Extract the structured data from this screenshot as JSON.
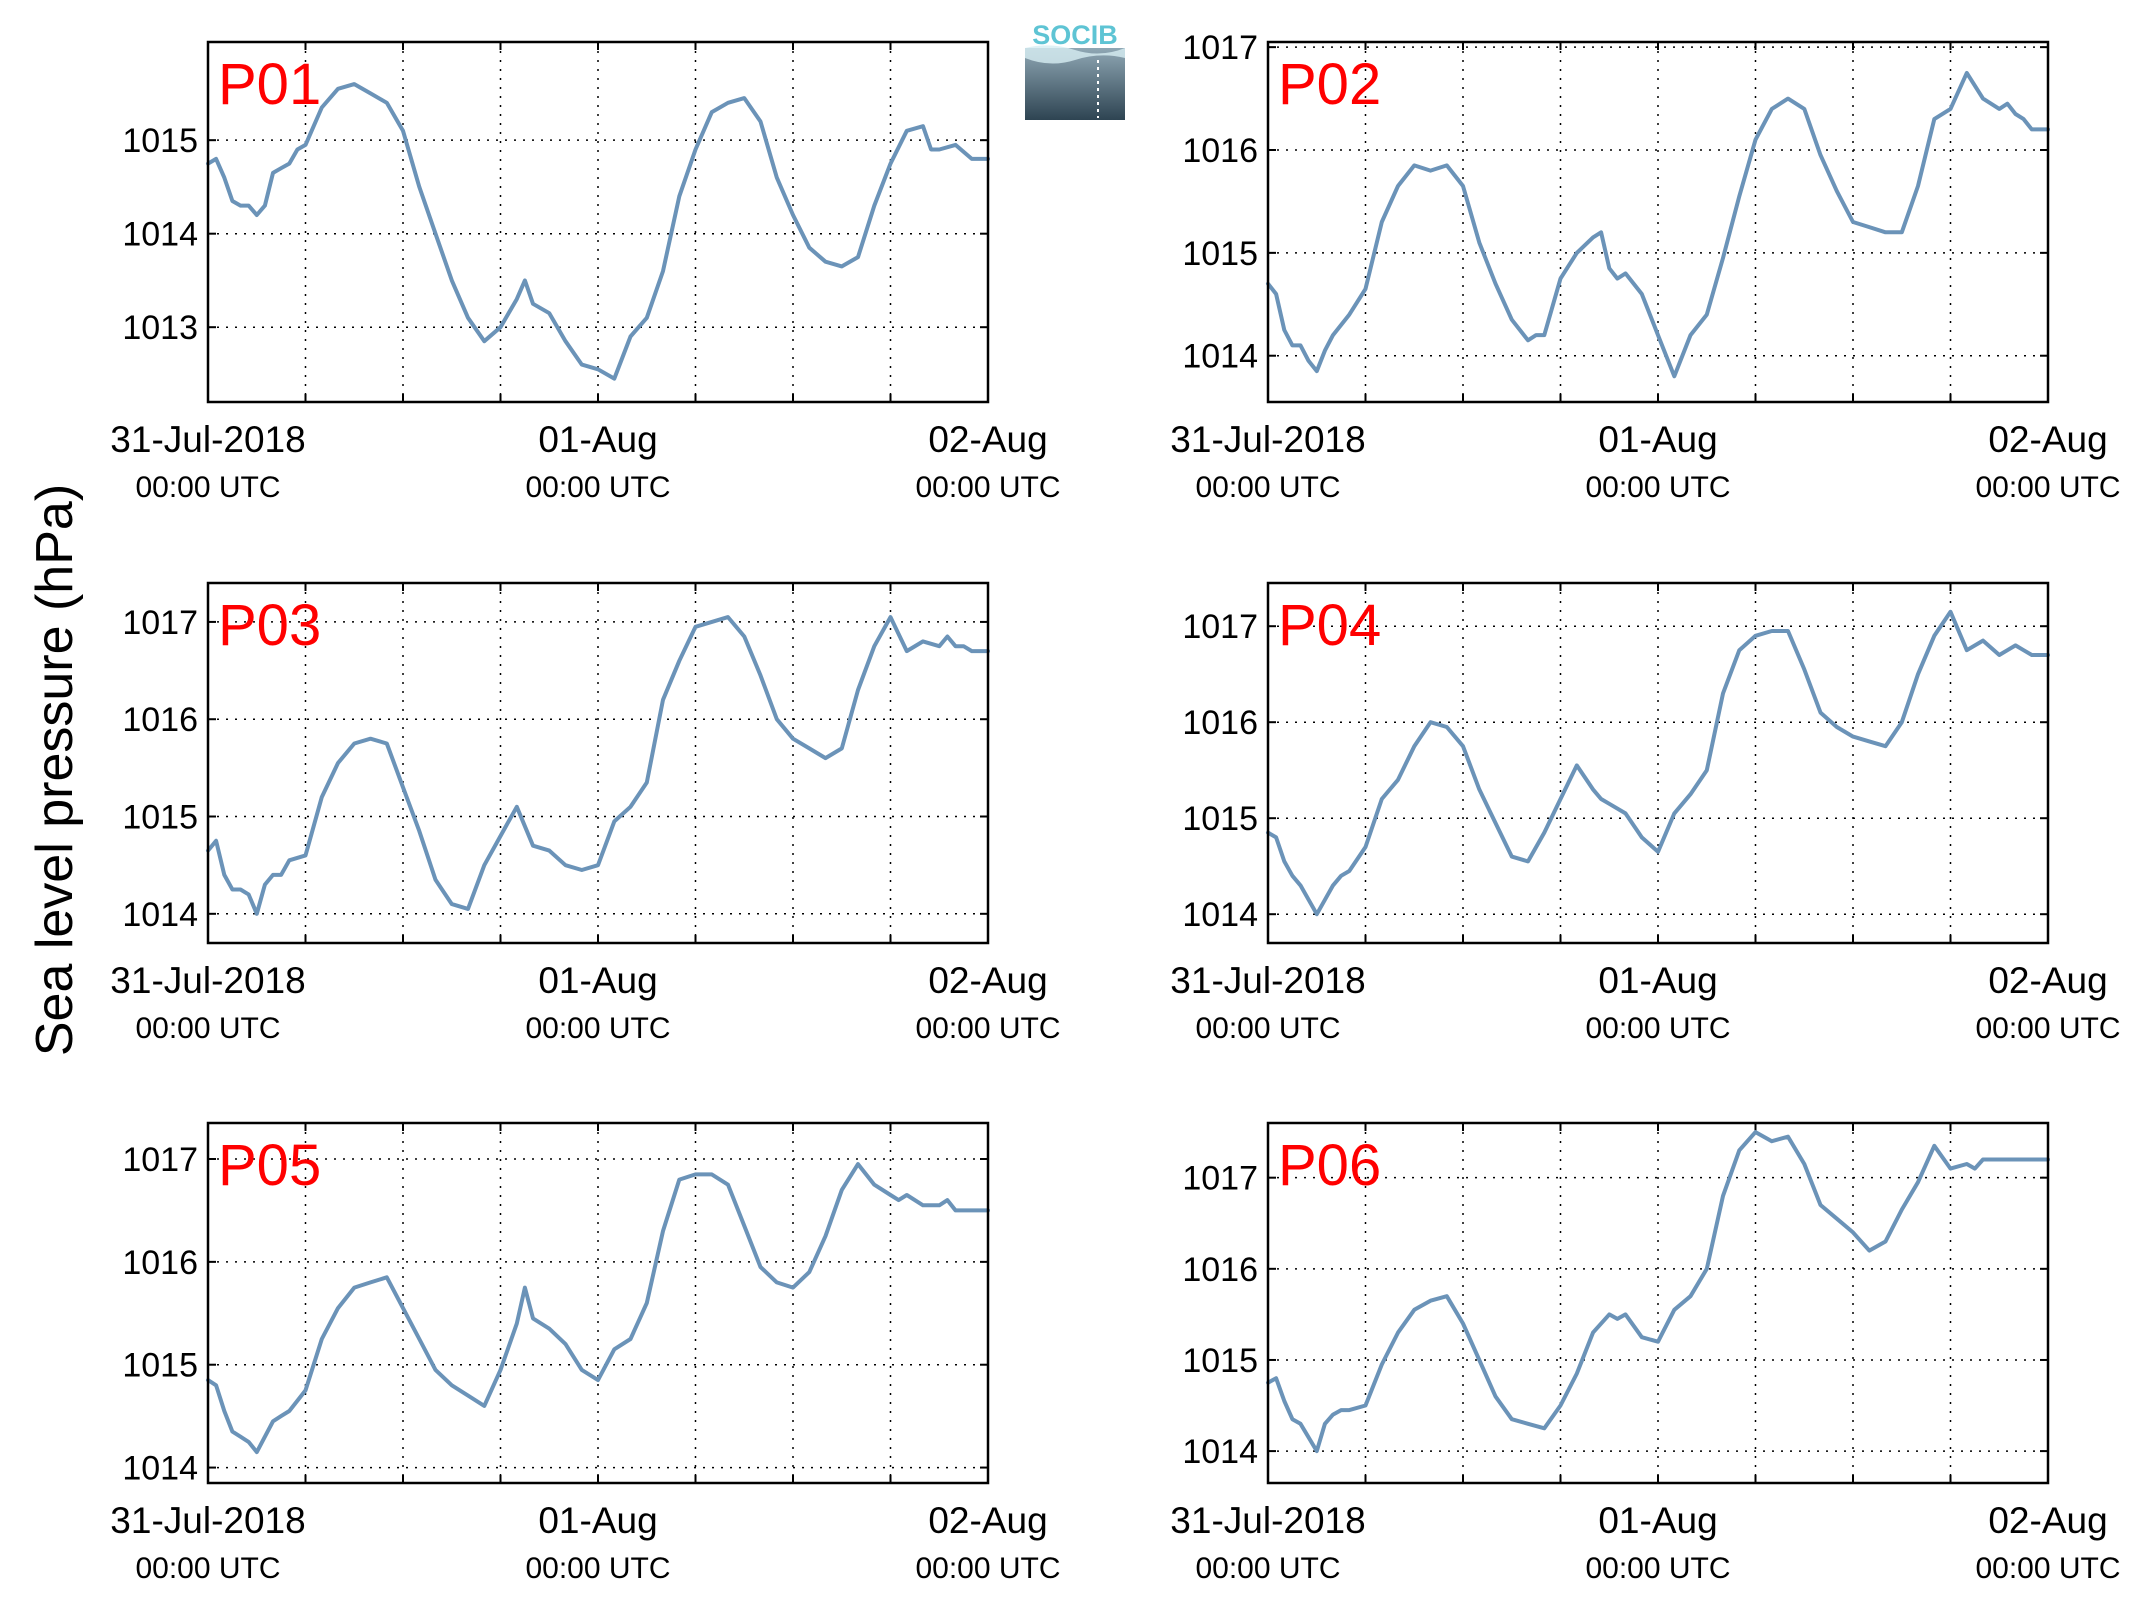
{
  "ylabel": "Sea level pressure (hPa)",
  "logo": {
    "text": "SOCIB",
    "text_color": "#5ec4d4"
  },
  "colors": {
    "line": "#6b93b8",
    "panel_label": "#ff0000"
  },
  "chart_data": [
    {
      "type": "line",
      "name": "P01",
      "ylim": [
        1012.2,
        1016.05
      ],
      "yticks": [
        1013,
        1014,
        1015
      ],
      "xlim": [
        0,
        48
      ],
      "grid": true,
      "series": [
        {
          "color": "#6b93b8",
          "x": [
            0,
            0.5,
            1,
            1.5,
            2,
            2.5,
            3,
            3.5,
            4,
            4.5,
            5,
            5.5,
            6,
            7,
            8,
            9,
            10,
            11,
            12,
            13,
            14,
            15,
            16,
            17,
            18,
            19,
            19.5,
            20,
            21,
            22,
            23,
            24,
            25,
            26,
            27,
            28,
            29,
            30,
            31,
            32,
            33,
            34,
            35,
            36,
            37,
            38,
            39,
            40,
            41,
            42,
            43,
            44,
            44.5,
            45,
            46,
            47,
            48
          ],
          "y": [
            1014.75,
            1014.8,
            1014.6,
            1014.35,
            1014.3,
            1014.3,
            1014.2,
            1014.3,
            1014.65,
            1014.7,
            1014.75,
            1014.9,
            1014.95,
            1015.35,
            1015.55,
            1015.6,
            1015.5,
            1015.4,
            1015.1,
            1014.5,
            1014.0,
            1013.5,
            1013.1,
            1012.85,
            1013.0,
            1013.3,
            1013.5,
            1013.25,
            1013.15,
            1012.85,
            1012.6,
            1012.55,
            1012.45,
            1012.9,
            1013.1,
            1013.6,
            1014.4,
            1014.9,
            1015.3,
            1015.4,
            1015.45,
            1015.2,
            1014.6,
            1014.2,
            1013.85,
            1013.7,
            1013.65,
            1013.75,
            1014.3,
            1014.75,
            1015.1,
            1015.15,
            1014.9,
            1014.9,
            1014.95,
            1014.8,
            1014.8
          ]
        }
      ],
      "x_ticks": [
        {
          "date": "31-Jul-2018",
          "time": "00:00 UTC"
        },
        {
          "date": "01-Aug",
          "time": "00:00 UTC"
        },
        {
          "date": "02-Aug",
          "time": "00:00 UTC"
        }
      ]
    },
    {
      "type": "line",
      "name": "P02",
      "ylim": [
        1013.55,
        1017.05
      ],
      "yticks": [
        1014,
        1015,
        1016,
        1017
      ],
      "xlim": [
        0,
        48
      ],
      "grid": true,
      "series": [
        {
          "color": "#6b93b8",
          "x": [
            0,
            0.5,
            1,
            1.5,
            2,
            2.5,
            3,
            3.5,
            4,
            5,
            6,
            7,
            8,
            9,
            10,
            11,
            12,
            13,
            14,
            15,
            16,
            16.5,
            17,
            18,
            19,
            20,
            20.5,
            21,
            21.5,
            22,
            23,
            24,
            25,
            26,
            27,
            28,
            29,
            30,
            31,
            32,
            33,
            34,
            35,
            36,
            37,
            38,
            39,
            40,
            41,
            42,
            43,
            44,
            45,
            45.5,
            46,
            46.5,
            47,
            48
          ],
          "y": [
            1014.7,
            1014.6,
            1014.25,
            1014.1,
            1014.1,
            1013.95,
            1013.85,
            1014.05,
            1014.2,
            1014.4,
            1014.65,
            1015.3,
            1015.65,
            1015.85,
            1015.8,
            1015.85,
            1015.65,
            1015.1,
            1014.7,
            1014.35,
            1014.15,
            1014.2,
            1014.2,
            1014.75,
            1015.0,
            1015.15,
            1015.2,
            1014.85,
            1014.75,
            1014.8,
            1014.6,
            1014.2,
            1013.8,
            1014.2,
            1014.4,
            1014.95,
            1015.55,
            1016.1,
            1016.4,
            1016.5,
            1016.4,
            1015.95,
            1015.6,
            1015.3,
            1015.25,
            1015.2,
            1015.2,
            1015.65,
            1016.3,
            1016.4,
            1016.75,
            1016.5,
            1016.4,
            1016.45,
            1016.35,
            1016.3,
            1016.2,
            1016.2
          ]
        }
      ],
      "x_ticks": [
        {
          "date": "31-Jul-2018",
          "time": "00:00 UTC"
        },
        {
          "date": "01-Aug",
          "time": "00:00 UTC"
        },
        {
          "date": "02-Aug",
          "time": "00:00 UTC"
        }
      ]
    },
    {
      "type": "line",
      "name": "P03",
      "ylim": [
        1013.7,
        1017.4
      ],
      "yticks": [
        1014,
        1015,
        1016,
        1017
      ],
      "xlim": [
        0,
        48
      ],
      "grid": true,
      "series": [
        {
          "color": "#6b93b8",
          "x": [
            0,
            0.5,
            1,
            1.5,
            2,
            2.5,
            3,
            3.5,
            4,
            4.5,
            5,
            6,
            7,
            8,
            9,
            10,
            11,
            12,
            13,
            14,
            15,
            16,
            17,
            18,
            19,
            20,
            21,
            22,
            23,
            24,
            25,
            26,
            27,
            28,
            29,
            30,
            31,
            32,
            33,
            34,
            35,
            36,
            37,
            38,
            39,
            40,
            41,
            42,
            43,
            44,
            45,
            45.5,
            46,
            46.5,
            47,
            48
          ],
          "y": [
            1014.65,
            1014.75,
            1014.4,
            1014.25,
            1014.25,
            1014.2,
            1014.0,
            1014.3,
            1014.4,
            1014.4,
            1014.55,
            1014.6,
            1015.2,
            1015.55,
            1015.75,
            1015.8,
            1015.75,
            1015.3,
            1014.85,
            1014.35,
            1014.1,
            1014.05,
            1014.5,
            1014.8,
            1015.1,
            1014.7,
            1014.65,
            1014.5,
            1014.45,
            1014.5,
            1014.95,
            1015.1,
            1015.35,
            1016.2,
            1016.6,
            1016.95,
            1017.0,
            1017.05,
            1016.85,
            1016.45,
            1016.0,
            1015.8,
            1015.7,
            1015.6,
            1015.7,
            1016.3,
            1016.75,
            1017.05,
            1016.7,
            1016.8,
            1016.75,
            1016.85,
            1016.75,
            1016.75,
            1016.7,
            1016.7
          ]
        }
      ],
      "x_ticks": [
        {
          "date": "31-Jul-2018",
          "time": "00:00 UTC"
        },
        {
          "date": "01-Aug",
          "time": "00:00 UTC"
        },
        {
          "date": "02-Aug",
          "time": "00:00 UTC"
        }
      ]
    },
    {
      "type": "line",
      "name": "P04",
      "ylim": [
        1013.7,
        1017.45
      ],
      "yticks": [
        1014,
        1015,
        1016,
        1017
      ],
      "xlim": [
        0,
        48
      ],
      "grid": true,
      "series": [
        {
          "color": "#6b93b8",
          "x": [
            0,
            0.5,
            1,
            1.5,
            2,
            3,
            3.5,
            4,
            4.5,
            5,
            6,
            7,
            8,
            9,
            10,
            11,
            12,
            13,
            14,
            15,
            16,
            17,
            18,
            19,
            20,
            20.5,
            21,
            22,
            23,
            24,
            25,
            26,
            27,
            28,
            29,
            30,
            31,
            32,
            33,
            34,
            35,
            36,
            37,
            38,
            39,
            40,
            41,
            42,
            43,
            44,
            45,
            45.5,
            46,
            46.5,
            47,
            48
          ],
          "y": [
            1014.85,
            1014.8,
            1014.55,
            1014.4,
            1014.3,
            1014.0,
            1014.15,
            1014.3,
            1014.4,
            1014.45,
            1014.7,
            1015.2,
            1015.4,
            1015.75,
            1016.0,
            1015.95,
            1015.75,
            1015.3,
            1014.95,
            1014.6,
            1014.55,
            1014.85,
            1015.2,
            1015.55,
            1015.3,
            1015.2,
            1015.15,
            1015.05,
            1014.8,
            1014.65,
            1015.05,
            1015.25,
            1015.5,
            1016.3,
            1016.75,
            1016.9,
            1016.95,
            1016.95,
            1016.55,
            1016.1,
            1015.95,
            1015.85,
            1015.8,
            1015.75,
            1016.0,
            1016.5,
            1016.9,
            1017.15,
            1016.75,
            1016.85,
            1016.7,
            1016.75,
            1016.8,
            1016.75,
            1016.7,
            1016.7
          ]
        }
      ],
      "x_ticks": [
        {
          "date": "31-Jul-2018",
          "time": "00:00 UTC"
        },
        {
          "date": "01-Aug",
          "time": "00:00 UTC"
        },
        {
          "date": "02-Aug",
          "time": "00:00 UTC"
        }
      ]
    },
    {
      "type": "line",
      "name": "P05",
      "ylim": [
        1013.85,
        1017.35
      ],
      "yticks": [
        1014,
        1015,
        1016,
        1017
      ],
      "xlim": [
        0,
        48
      ],
      "grid": true,
      "series": [
        {
          "color": "#6b93b8",
          "x": [
            0,
            0.5,
            1,
            1.5,
            2,
            2.5,
            3,
            3.5,
            4,
            4.5,
            5,
            6,
            7,
            8,
            9,
            10,
            11,
            12,
            13,
            14,
            15,
            16,
            17,
            18,
            19,
            19.5,
            20,
            21,
            22,
            23,
            24,
            25,
            26,
            27,
            28,
            29,
            30,
            31,
            32,
            33,
            34,
            35,
            36,
            37,
            38,
            39,
            40,
            41,
            42,
            42.5,
            43,
            44,
            45,
            45.5,
            46,
            47,
            48
          ],
          "y": [
            1014.85,
            1014.8,
            1014.55,
            1014.35,
            1014.3,
            1014.25,
            1014.15,
            1014.3,
            1014.45,
            1014.5,
            1014.55,
            1014.75,
            1015.25,
            1015.55,
            1015.75,
            1015.8,
            1015.85,
            1015.55,
            1015.25,
            1014.95,
            1014.8,
            1014.7,
            1014.6,
            1014.95,
            1015.4,
            1015.75,
            1015.45,
            1015.35,
            1015.2,
            1014.95,
            1014.85,
            1015.15,
            1015.25,
            1015.6,
            1016.3,
            1016.8,
            1016.85,
            1016.85,
            1016.75,
            1016.35,
            1015.95,
            1015.8,
            1015.75,
            1015.9,
            1016.25,
            1016.7,
            1016.95,
            1016.75,
            1016.65,
            1016.6,
            1016.65,
            1016.55,
            1016.55,
            1016.6,
            1016.5,
            1016.5,
            1016.5
          ]
        }
      ],
      "x_ticks": [
        {
          "date": "31-Jul-2018",
          "time": "00:00 UTC"
        },
        {
          "date": "01-Aug",
          "time": "00:00 UTC"
        },
        {
          "date": "02-Aug",
          "time": "00:00 UTC"
        }
      ]
    },
    {
      "type": "line",
      "name": "P06",
      "ylim": [
        1013.65,
        1017.6
      ],
      "yticks": [
        1014,
        1015,
        1016,
        1017
      ],
      "xlim": [
        0,
        48
      ],
      "grid": true,
      "series": [
        {
          "color": "#6b93b8",
          "x": [
            0,
            0.5,
            1,
            1.5,
            2,
            3,
            3.5,
            4,
            4.5,
            5,
            6,
            7,
            8,
            9,
            10,
            11,
            12,
            13,
            14,
            15,
            16,
            17,
            18,
            19,
            20,
            21,
            21.5,
            22,
            23,
            24,
            25,
            26,
            27,
            28,
            29,
            30,
            31,
            32,
            33,
            34,
            35,
            36,
            37,
            38,
            39,
            40,
            41,
            42,
            43,
            43.5,
            44,
            45,
            46,
            47,
            48
          ],
          "y": [
            1014.75,
            1014.8,
            1014.55,
            1014.35,
            1014.3,
            1014.0,
            1014.3,
            1014.4,
            1014.45,
            1014.45,
            1014.5,
            1014.95,
            1015.3,
            1015.55,
            1015.65,
            1015.7,
            1015.4,
            1015.0,
            1014.6,
            1014.35,
            1014.3,
            1014.25,
            1014.5,
            1014.85,
            1015.3,
            1015.5,
            1015.45,
            1015.5,
            1015.25,
            1015.2,
            1015.55,
            1015.7,
            1016.0,
            1016.8,
            1017.3,
            1017.5,
            1017.4,
            1017.45,
            1017.15,
            1016.7,
            1016.55,
            1016.4,
            1016.2,
            1016.3,
            1016.65,
            1016.95,
            1017.35,
            1017.1,
            1017.15,
            1017.1,
            1017.2,
            1017.2,
            1017.2,
            1017.2,
            1017.2
          ]
        }
      ],
      "x_ticks": [
        {
          "date": "31-Jul-2018",
          "time": "00:00 UTC"
        },
        {
          "date": "01-Aug",
          "time": "00:00 UTC"
        },
        {
          "date": "02-Aug",
          "time": "00:00 UTC"
        }
      ]
    }
  ]
}
